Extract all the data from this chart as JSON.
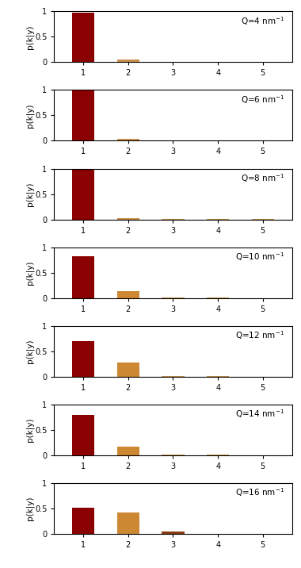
{
  "Q_values": [
    4,
    6,
    8,
    10,
    12,
    14,
    16
  ],
  "k_values": [
    1,
    2,
    3,
    4,
    5
  ],
  "bar_data": [
    [
      0.97,
      0.05,
      0.01,
      0.003,
      0.001
    ],
    [
      0.99,
      0.03,
      0.008,
      0.004,
      0.002
    ],
    [
      0.98,
      0.025,
      0.008,
      0.003,
      0.001
    ],
    [
      0.82,
      0.14,
      0.01,
      0.004,
      0.001
    ],
    [
      0.7,
      0.28,
      0.018,
      0.008,
      0.003
    ],
    [
      0.8,
      0.17,
      0.012,
      0.008,
      0.003
    ],
    [
      0.52,
      0.43,
      0.05,
      0.008,
      0.004
    ]
  ],
  "bar_colors": [
    [
      "#8B0000",
      "#C8904A",
      "#C8904A",
      "#C8904A",
      "#C8904A"
    ],
    [
      "#8B0000",
      "#C8904A",
      "#C8904A",
      "#C8904A",
      "#C8904A"
    ],
    [
      "#8B0000",
      "#C8904A",
      "#C8904A",
      "#C8904A",
      "#C8904A"
    ],
    [
      "#8B0000",
      "#CC8833",
      "#C8904A",
      "#C8904A",
      "#C8904A"
    ],
    [
      "#8B0000",
      "#CC8833",
      "#C8904A",
      "#C8904A",
      "#C8904A"
    ],
    [
      "#8B0000",
      "#CC8833",
      "#C8904A",
      "#C8904A",
      "#C8904A"
    ],
    [
      "#8B0000",
      "#CC8833",
      "#8B3A10",
      "#C8904A",
      "#C8904A"
    ]
  ],
  "ylabel": "p(k|y)",
  "ylim": [
    0,
    1
  ],
  "yticks": [
    0,
    0.5,
    1
  ],
  "ytick_labels": [
    "0",
    "0.5",
    "1"
  ],
  "xticks": [
    1,
    2,
    3,
    4,
    5
  ],
  "figure_width": 3.8,
  "figure_height": 7.16,
  "background_color": "#ffffff",
  "bar_width": 0.5
}
